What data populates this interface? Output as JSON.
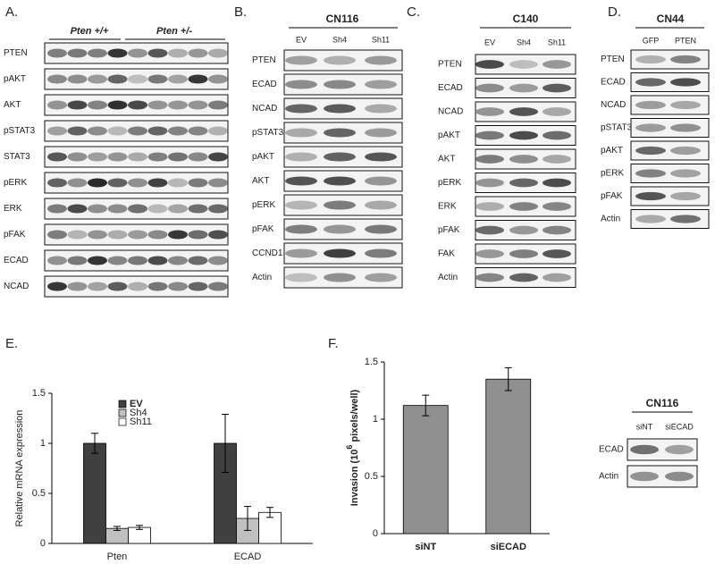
{
  "panels": {
    "A": {
      "label": "A.",
      "groups": [
        "Pten +/+",
        "Pten +/-"
      ],
      "rows": [
        "PTEN",
        "pAKT",
        "AKT",
        "pSTAT3",
        "STAT3",
        "pERK",
        "ERK",
        "pFAK",
        "ECAD",
        "NCAD"
      ]
    },
    "B": {
      "label": "B.",
      "title": "CN116",
      "lanes": [
        "EV",
        "Sh4",
        "Sh11"
      ],
      "rows": [
        "PTEN",
        "ECAD",
        "NCAD",
        "pSTAT3",
        "pAKT",
        "AKT",
        "pERK",
        "pFAK",
        "CCND1",
        "Actin"
      ]
    },
    "C": {
      "label": "C.",
      "title": "C140",
      "lanes": [
        "EV",
        "Sh4",
        "Sh11"
      ],
      "rows": [
        "PTEN",
        "ECAD",
        "NCAD",
        "pAKT",
        "AKT",
        "pERK",
        "ERK",
        "pFAK",
        "FAK",
        "Actin"
      ]
    },
    "D": {
      "label": "D.",
      "title": "CN44",
      "lanes": [
        "GFP",
        "PTEN"
      ],
      "rows": [
        "PTEN",
        "ECAD",
        "NCAD",
        "pSTAT3",
        "pAKT",
        "pERK",
        "pFAK",
        "Actin"
      ]
    },
    "F_blot": {
      "title": "CN116",
      "lanes": [
        "siNT",
        "siECAD"
      ],
      "rows": [
        "ECAD",
        "Actin"
      ]
    }
  },
  "chart_data": [
    {
      "type": "bar",
      "panel_label": "E.",
      "ylabel": "Relative mRNA expression",
      "categories": [
        "Pten",
        "ECAD"
      ],
      "series": [
        {
          "name": "EV",
          "color": "#404040",
          "values": [
            1,
            1
          ],
          "errors": [
            0.1,
            0.29
          ]
        },
        {
          "name": "Sh4",
          "color": "#c0c0c0",
          "values": [
            0.15,
            0.25
          ],
          "errors": [
            0.02,
            0.12
          ]
        },
        {
          "name": "Sh11",
          "color": "#ffffff",
          "values": [
            0.16,
            0.31
          ],
          "errors": [
            0.02,
            0.05
          ]
        }
      ],
      "ylim": [
        0,
        1.5
      ],
      "yticks": [
        0,
        0.5,
        1,
        1.5
      ],
      "legend": "top-left"
    },
    {
      "type": "bar",
      "panel_label": "F.",
      "ylabel": "Invasion (10",
      "ylabel_sup": "6",
      "ylabel_end": " pixels/well)",
      "categories": [
        "siNT",
        "siECAD"
      ],
      "values": [
        1.12,
        1.35
      ],
      "errors": [
        0.09,
        0.1
      ],
      "color": "#909090",
      "ylim": [
        0,
        1.5
      ],
      "yticks": [
        0,
        0.5,
        1,
        1.5
      ]
    }
  ]
}
